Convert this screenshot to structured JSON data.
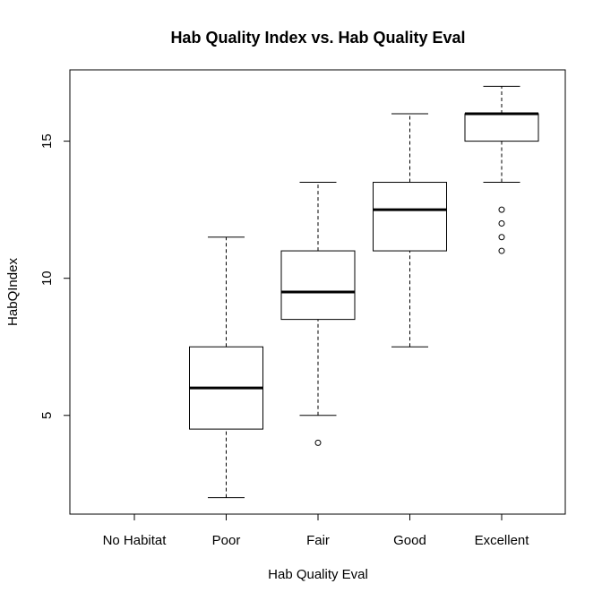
{
  "chart_data": {
    "type": "box",
    "title": "Hab Quality Index vs. Hab Quality Eval",
    "xlabel": "Hab Quality Eval",
    "ylabel": "HabQIndex",
    "categories": [
      "No Habitat",
      "Poor",
      "Fair",
      "Good",
      "Excellent"
    ],
    "yticks": [
      5,
      10,
      15
    ],
    "ylim": [
      1.4,
      17.6
    ],
    "grid": false,
    "boxes": [
      {
        "category": "No Habitat",
        "min": null,
        "q1": null,
        "median": null,
        "q3": null,
        "max": null,
        "outliers": []
      },
      {
        "category": "Poor",
        "min": 2,
        "q1": 4.5,
        "median": 6,
        "q3": 7.5,
        "max": 11.5,
        "outliers": []
      },
      {
        "category": "Fair",
        "min": 5,
        "q1": 8.5,
        "median": 9.5,
        "q3": 11,
        "max": 13.5,
        "outliers": [
          4
        ]
      },
      {
        "category": "Good",
        "min": 7.5,
        "q1": 11,
        "median": 12.5,
        "q3": 13.5,
        "max": 16,
        "outliers": []
      },
      {
        "category": "Excellent",
        "min": 13.5,
        "q1": 15,
        "median": 16,
        "q3": 16,
        "max": 17,
        "outliers": [
          12.5,
          12,
          11.5,
          11
        ]
      }
    ]
  }
}
